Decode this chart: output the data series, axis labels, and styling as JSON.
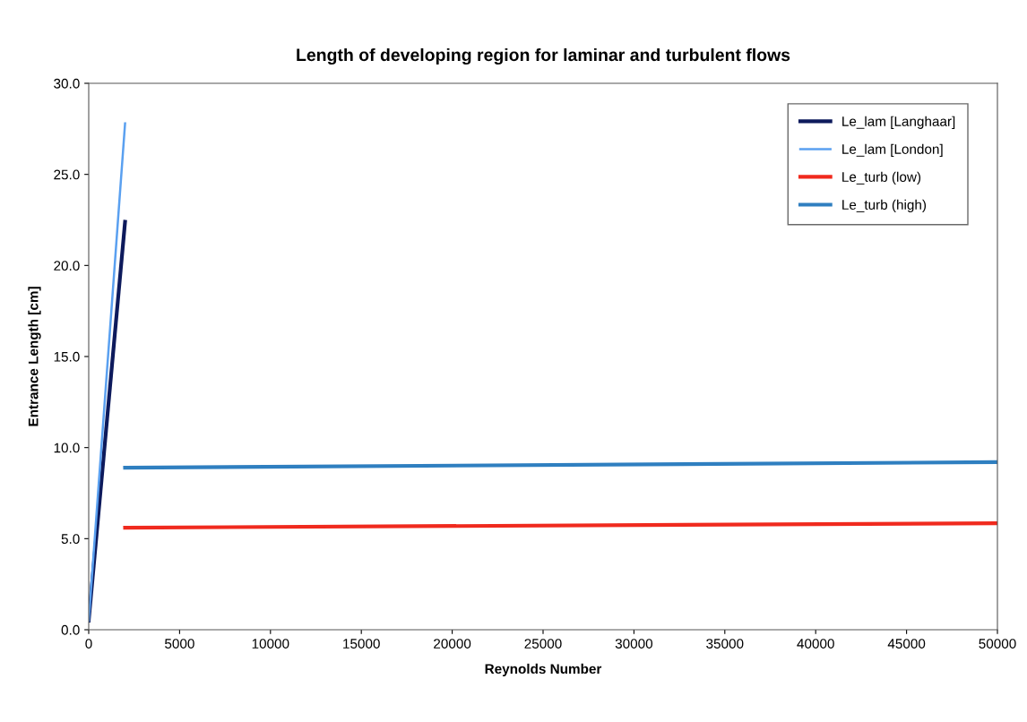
{
  "chart_data": {
    "type": "line",
    "title": "Length of developing region for laminar and turbulent flows",
    "xlabel": "Reynolds Number",
    "ylabel": "Entrance Length [cm]",
    "series": [
      {
        "name": "Le_lam [Langhaar]",
        "color": "#0d1a5c",
        "x": [
          0,
          2000
        ],
        "values": [
          0.5,
          22.4
        ]
      },
      {
        "name": "Le_lam [London]",
        "color": "#5aa0f0",
        "x": [
          0,
          2000
        ],
        "values": [
          0.5,
          27.8
        ]
      },
      {
        "name": "Le_turb (low)",
        "color": "#f02a1e",
        "x": [
          2000,
          50000
        ],
        "values": [
          5.6,
          5.85
        ]
      },
      {
        "name": "Le_turb (high)",
        "color": "#2f7fc0",
        "x": [
          2000,
          50000
        ],
        "values": [
          8.9,
          9.2
        ]
      }
    ],
    "xlim": [
      0,
      50000
    ],
    "xticks": [
      0,
      5000,
      10000,
      15000,
      20000,
      25000,
      30000,
      35000,
      40000,
      45000,
      50000
    ],
    "ylim": [
      0,
      30
    ],
    "yticks": [
      {
        "value": 0,
        "label": "0.0"
      },
      {
        "value": 5,
        "label": "5.0"
      },
      {
        "value": 10,
        "label": "10.0"
      },
      {
        "value": 15,
        "label": "15.0"
      },
      {
        "value": 20,
        "label": "20.0"
      },
      {
        "value": 25,
        "label": "25.0"
      },
      {
        "value": 30,
        "label": "30.0"
      }
    ],
    "grid": false,
    "legend": "top right",
    "marker": "none",
    "line_style": "solid"
  }
}
